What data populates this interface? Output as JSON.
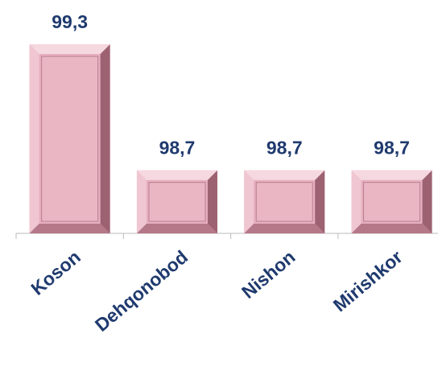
{
  "chart_data": {
    "type": "bar",
    "categories": [
      "Koson",
      "Dehqonobod",
      "Nishon",
      "Mirishkor"
    ],
    "values": [
      99.3,
      98.7,
      98.7,
      98.7
    ],
    "value_labels": [
      "99,3",
      "98,7",
      "98,7",
      "98,7"
    ],
    "color": "#e6aebe",
    "ylim": [
      98.4,
      99.4
    ]
  }
}
